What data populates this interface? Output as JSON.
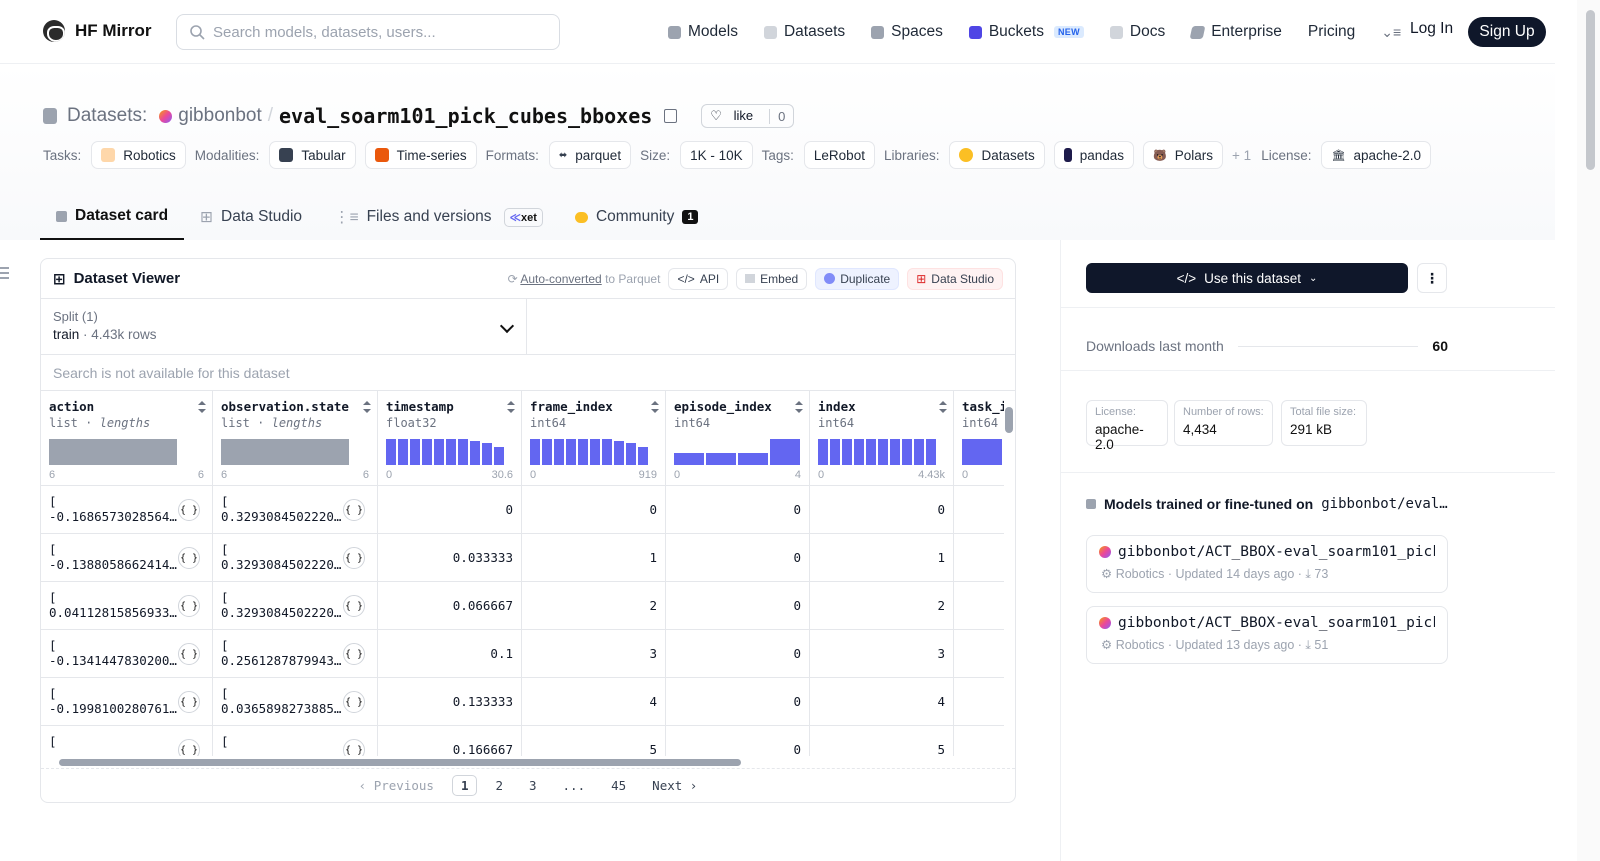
{
  "nav": {
    "logo_text": "HF Mirror",
    "search_placeholder": "Search models, datasets, users...",
    "links": [
      {
        "label": "Models",
        "icon": "cube-icon",
        "color": "#6b7280"
      },
      {
        "label": "Datasets",
        "icon": "database-icon",
        "color": "#9ca3af"
      },
      {
        "label": "Spaces",
        "icon": "grid-icon",
        "color": "#6b7280"
      },
      {
        "label": "Buckets",
        "icon": "bucket-icon",
        "color": "#4f46e5",
        "badge": "NEW"
      },
      {
        "label": "Docs",
        "icon": "book-icon",
        "color": "#9ca3af"
      },
      {
        "label": "Enterprise",
        "icon": "building-icon",
        "color": "#6b7280"
      },
      {
        "label": "Pricing"
      }
    ],
    "login": "Log In",
    "signup": "Sign Up"
  },
  "header": {
    "section": "Datasets:",
    "org": "gibbonbot",
    "sep": "/",
    "name": "eval_soarm101_pick_cubes_bboxes",
    "like_label": "like",
    "like_count": "0"
  },
  "tags": {
    "tasks_label": "Tasks:",
    "task": "Robotics",
    "modalities_label": "Modalities:",
    "mod1": "Tabular",
    "mod2": "Time-series",
    "formats_label": "Formats:",
    "format": "parquet",
    "size_label": "Size:",
    "size": "1K - 10K",
    "tags_label": "Tags:",
    "tag": "LeRobot",
    "libraries_label": "Libraries:",
    "lib1": "Datasets",
    "lib2": "pandas",
    "lib3": "Polars",
    "more": "+ 1",
    "license_label": "License:",
    "license": "apache-2.0"
  },
  "tabs": {
    "card": "Dataset card",
    "studio": "Data Studio",
    "files": "Files and versions",
    "xet": "xet",
    "community": "Community",
    "community_count": "1"
  },
  "viewer": {
    "title": "Dataset Viewer",
    "auto_link": "Auto-converted",
    "auto_rest": " to Parquet",
    "api": "API",
    "embed": "Embed",
    "duplicate": "Duplicate",
    "data_studio": "Data Studio",
    "split_label": "Split (1)",
    "split_value": "train",
    "split_rows": "4.43k rows",
    "search_na": "Search is not available for this dataset",
    "columns": [
      {
        "name": "action",
        "type": "list",
        "sub": "lengths",
        "min": "6",
        "max": "6"
      },
      {
        "name": "observation.state",
        "type": "list",
        "sub": "lengths",
        "min": "6",
        "max": "6"
      },
      {
        "name": "timestamp",
        "type": "float32",
        "min": "0",
        "max": "30.6"
      },
      {
        "name": "frame_index",
        "type": "int64",
        "min": "0",
        "max": "919"
      },
      {
        "name": "episode_index",
        "type": "int64",
        "min": "0",
        "max": "4"
      },
      {
        "name": "index",
        "type": "int64",
        "min": "0",
        "max": "4.43k"
      },
      {
        "name": "task_i",
        "type": "int64",
        "min": "0"
      }
    ],
    "rows": [
      {
        "action": "[",
        "action2": "-0.1686573028564…",
        "obs": "[",
        "obs2": "0.3293084502220…",
        "ts": "0",
        "fi": "0",
        "ei": "0",
        "ix": "0"
      },
      {
        "action": "[",
        "action2": "-0.1388058662414…",
        "obs": "[",
        "obs2": "0.3293084502220…",
        "ts": "0.033333",
        "fi": "1",
        "ei": "0",
        "ix": "1"
      },
      {
        "action": "[",
        "action2": "0.04112815856933…",
        "obs": "[",
        "obs2": "0.3293084502220…",
        "ts": "0.066667",
        "fi": "2",
        "ei": "0",
        "ix": "2"
      },
      {
        "action": "[",
        "action2": "-0.1341447830200…",
        "obs": "[",
        "obs2": "0.2561287879943…",
        "ts": "0.1",
        "fi": "3",
        "ei": "0",
        "ix": "3"
      },
      {
        "action": "[",
        "action2": "-0.1998100280761…",
        "obs": "[",
        "obs2": "0.0365898273885…",
        "ts": "0.133333",
        "fi": "4",
        "ei": "0",
        "ix": "4"
      },
      {
        "action": "[",
        "action2": "",
        "obs": "[",
        "obs2": "",
        "ts": "0.166667",
        "fi": "5",
        "ei": "0",
        "ix": "5"
      }
    ],
    "pager": {
      "prev": "Previous",
      "p1": "1",
      "p2": "2",
      "p3": "3",
      "dots": "...",
      "p45": "45",
      "next": "Next"
    }
  },
  "sidebar": {
    "use_button": "Use this dataset",
    "downloads_label": "Downloads last month",
    "downloads_value": "60",
    "stats": [
      {
        "label": "License:",
        "value": "apache-2.0"
      },
      {
        "label": "Number of rows:",
        "value": "4,434"
      },
      {
        "label": "Total file size:",
        "value": "291 kB"
      }
    ],
    "models_heading": "Models trained or fine-tuned on",
    "models_repo": "gibbonbot/eval…",
    "models": [
      {
        "name": "gibbonbot/ACT_BBOX-eval_soarm101_pick…",
        "task": "Robotics",
        "updated": "Updated 14 days ago",
        "downloads": "73"
      },
      {
        "name": "gibbonbot/ACT_BBOX-eval_soarm101_pick…",
        "task": "Robotics",
        "updated": "Updated 13 days ago",
        "downloads": "51"
      }
    ]
  }
}
